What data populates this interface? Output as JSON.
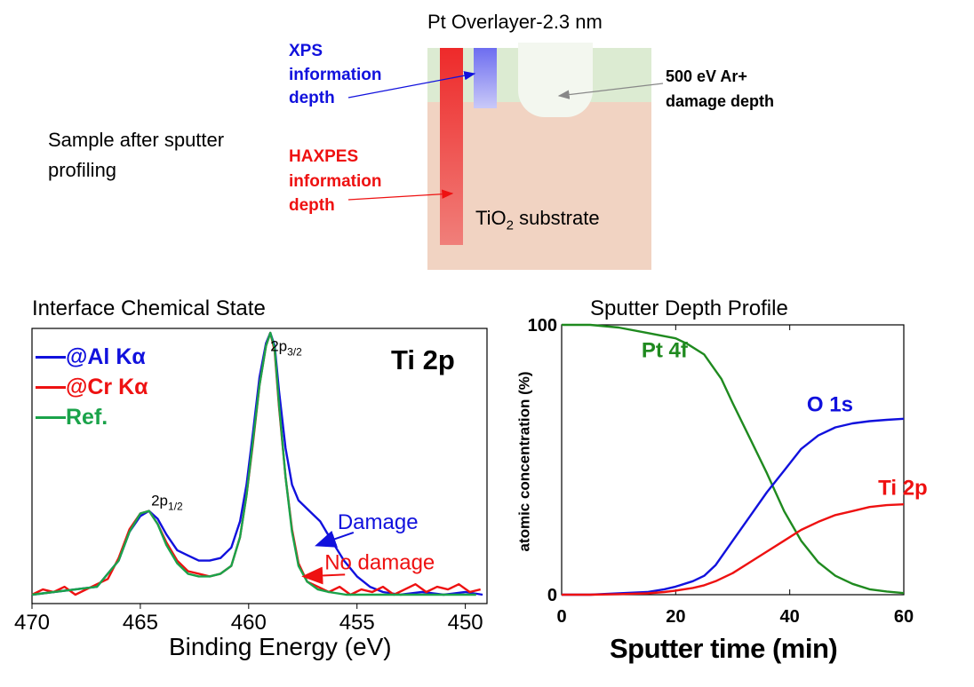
{
  "schematic": {
    "title": "Pt Overlayer-2.3 nm",
    "sample_label_line1": "Sample after sputter",
    "sample_label_line2": "profiling",
    "xps_line1": "XPS",
    "xps_line2": "information",
    "xps_line3": "depth",
    "haxpes_line1": "HAXPES",
    "haxpes_line2": "information",
    "haxpes_line3": "depth",
    "damage_line1": "500 eV Ar+",
    "damage_line2": "damage depth",
    "substrate_main": "TiO",
    "substrate_sub": "2",
    "substrate_rest": "substrate",
    "colors": {
      "overlayer": "#dcebd2",
      "substrate": "#f1d3c2",
      "haxpes": "#ee3333",
      "xps": "#8a8af2",
      "damage": "#f3f7ef"
    }
  },
  "chart_data": [
    {
      "type": "line",
      "title": "Interface Chemical State",
      "xlabel": "Binding Energy (eV)",
      "ylabel": "",
      "xlim": [
        470,
        449
      ],
      "x_reversed": true,
      "ylim": [
        0,
        1
      ],
      "xticks": [
        "470",
        "465",
        "460",
        "455",
        "450"
      ],
      "panel_label": "Ti 2p",
      "peak_labels": [
        {
          "main": "2p",
          "sub": "3/2",
          "x": 459,
          "y": 0.93
        },
        {
          "main": "2p",
          "sub": "1/2",
          "x": 464.5,
          "y": 0.34
        }
      ],
      "annotations": [
        {
          "text": "Damage",
          "color": "#1111dd",
          "x": 456.8,
          "y": 0.19
        },
        {
          "text": "No damage",
          "color": "#ee1111",
          "x": 457.4,
          "y": 0.07
        }
      ],
      "series": [
        {
          "name": "@Al Kα",
          "color": "#1111dd",
          "x": [
            470,
            467,
            466,
            465.5,
            465,
            464.6,
            464.2,
            463.8,
            463.3,
            462.8,
            462.3,
            461.8,
            461.3,
            460.8,
            460.4,
            460.1,
            459.8,
            459.5,
            459.2,
            459.0,
            458.8,
            458.6,
            458.3,
            458.0,
            457.7,
            457.2,
            456.7,
            456.2,
            455.6,
            455.0,
            454.4,
            453.8,
            453,
            452,
            451,
            450,
            449.2
          ],
          "y": [
            0.0,
            0.03,
            0.13,
            0.24,
            0.3,
            0.32,
            0.29,
            0.23,
            0.17,
            0.15,
            0.13,
            0.13,
            0.14,
            0.18,
            0.28,
            0.42,
            0.62,
            0.83,
            0.96,
            1.0,
            0.95,
            0.78,
            0.56,
            0.42,
            0.36,
            0.32,
            0.28,
            0.21,
            0.13,
            0.07,
            0.03,
            0.01,
            0.0,
            0.01,
            0.0,
            0.01,
            0.0
          ]
        },
        {
          "name": "@Cr Kα",
          "color": "#ee1111",
          "x": [
            470,
            469.5,
            469,
            468.5,
            468,
            467.5,
            467,
            466.5,
            466,
            465.5,
            465,
            464.6,
            464.2,
            463.8,
            463.3,
            462.8,
            462.3,
            461.8,
            461.3,
            460.8,
            460.4,
            460.1,
            459.8,
            459.5,
            459.2,
            459.0,
            458.8,
            458.6,
            458.3,
            458.0,
            457.7,
            457.3,
            456.8,
            456.3,
            455.8,
            455.3,
            454.8,
            454.3,
            453.8,
            453.3,
            452.8,
            452.3,
            451.8,
            451.3,
            450.8,
            450.3,
            449.8,
            449.3
          ],
          "y": [
            0.0,
            0.02,
            0.01,
            0.03,
            0.0,
            0.02,
            0.04,
            0.06,
            0.14,
            0.25,
            0.31,
            0.32,
            0.27,
            0.2,
            0.13,
            0.09,
            0.08,
            0.07,
            0.08,
            0.11,
            0.22,
            0.38,
            0.58,
            0.8,
            0.95,
            1.0,
            0.93,
            0.72,
            0.45,
            0.25,
            0.12,
            0.05,
            0.03,
            0.01,
            0.03,
            0.0,
            0.02,
            0.01,
            0.03,
            0.0,
            0.02,
            0.04,
            0.01,
            0.03,
            0.02,
            0.04,
            0.01,
            0.02
          ]
        },
        {
          "name": "Ref.",
          "color": "#1aa34a",
          "x": [
            470,
            467,
            466,
            465.5,
            465,
            464.6,
            464.2,
            463.8,
            463.3,
            462.8,
            462.3,
            461.8,
            461.3,
            460.8,
            460.4,
            460.1,
            459.8,
            459.5,
            459.2,
            459.0,
            458.8,
            458.6,
            458.3,
            458.0,
            457.7,
            457.3,
            456.8,
            456.3,
            455.5,
            454,
            452,
            449.5
          ],
          "y": [
            0.0,
            0.03,
            0.13,
            0.24,
            0.31,
            0.32,
            0.27,
            0.19,
            0.12,
            0.08,
            0.07,
            0.07,
            0.08,
            0.11,
            0.22,
            0.38,
            0.59,
            0.8,
            0.95,
            1.0,
            0.94,
            0.73,
            0.45,
            0.24,
            0.11,
            0.05,
            0.02,
            0.01,
            0.0,
            0.0,
            0.0,
            0.0
          ]
        }
      ]
    },
    {
      "type": "line",
      "title": "Sputter Depth Profile",
      "xlabel": "Sputter time (min)",
      "ylabel": "atomic concentration (%)",
      "xlim": [
        0,
        60
      ],
      "ylim": [
        0,
        100
      ],
      "xticks": [
        "0",
        "20",
        "40",
        "60"
      ],
      "yticks": [
        "0",
        "100"
      ],
      "series": [
        {
          "name": "Pt 4f",
          "color": "#1f8a1f",
          "label_x": 14,
          "label_y": 88,
          "x": [
            0,
            5,
            10,
            15,
            20,
            22,
            25,
            28,
            30,
            33,
            36,
            39,
            42,
            45,
            48,
            51,
            54,
            57,
            60
          ],
          "y": [
            100,
            100,
            99,
            97,
            95,
            93,
            89,
            80,
            71,
            58,
            45,
            31,
            20,
            12,
            7,
            4,
            2,
            1.2,
            0.6
          ]
        },
        {
          "name": "O 1s",
          "color": "#1111dd",
          "label_x": 43,
          "label_y": 68,
          "x": [
            0,
            5,
            10,
            15,
            18,
            20,
            23,
            25,
            27,
            30,
            33,
            36,
            39,
            42,
            45,
            48,
            51,
            54,
            57,
            60
          ],
          "y": [
            0,
            0,
            0.5,
            1,
            2,
            3,
            5,
            7,
            11,
            20,
            29,
            38,
            46,
            54,
            59,
            62,
            63.5,
            64.3,
            64.8,
            65.2
          ]
        },
        {
          "name": "Ti 2p",
          "color": "#ee1111",
          "label_x": 55.5,
          "label_y": 37,
          "x": [
            0,
            5,
            10,
            15,
            18,
            20,
            23,
            25,
            27,
            30,
            33,
            36,
            39,
            42,
            45,
            48,
            51,
            54,
            57,
            60
          ],
          "y": [
            0,
            0,
            0.2,
            0.5,
            1,
            1.5,
            2.5,
            3.5,
            5,
            8,
            12,
            16,
            20,
            24,
            27,
            29.5,
            31,
            32.5,
            33.2,
            33.5
          ]
        }
      ]
    }
  ]
}
